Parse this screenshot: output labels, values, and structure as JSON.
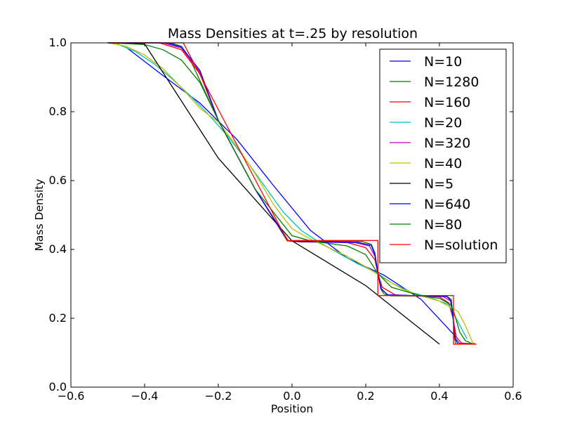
{
  "chart_data": {
    "type": "line",
    "title": "Mass Densities at t=.25 by resolution",
    "xlabel": "Position",
    "ylabel": "Mass Density",
    "xlim": [
      -0.6,
      0.6
    ],
    "ylim": [
      0.0,
      1.0
    ],
    "xticks": [
      "−0.6",
      "−0.4",
      "−0.2",
      "0.0",
      "0.2",
      "0.4",
      "0.6"
    ],
    "yticks": [
      "0.0",
      "0.2",
      "0.4",
      "0.6",
      "0.8",
      "1.0"
    ],
    "grid": false,
    "legend_position": "top-right",
    "series": [
      {
        "name": "N=10",
        "color": "#0000ff",
        "x": [
          -0.45,
          -0.35,
          -0.25,
          -0.15,
          -0.05,
          0.05,
          0.15,
          0.25,
          0.35,
          0.45
        ],
        "y": [
          0.987,
          0.905,
          0.825,
          0.72,
          0.585,
          0.455,
          0.375,
          0.325,
          0.255,
          0.14
        ]
      },
      {
        "name": "N=1280",
        "color": "#008000",
        "x": [
          -0.5,
          -0.33,
          -0.3,
          -0.28,
          -0.2,
          -0.1,
          -0.013,
          0.19,
          0.215,
          0.225,
          0.233,
          0.241,
          0.25,
          0.27,
          0.42,
          0.432,
          0.437,
          0.441,
          0.445,
          0.5
        ],
        "y": [
          1.0,
          1.0,
          0.99,
          0.96,
          0.775,
          0.575,
          0.425,
          0.423,
          0.415,
          0.39,
          0.33,
          0.285,
          0.27,
          0.265,
          0.264,
          0.255,
          0.2,
          0.14,
          0.125,
          0.125
        ]
      },
      {
        "name": "N=160",
        "color": "#ff0000",
        "x": [
          -0.5,
          -0.36,
          -0.3,
          -0.25,
          -0.2,
          -0.1,
          -0.01,
          0.02,
          0.15,
          0.2,
          0.225,
          0.233,
          0.245,
          0.28,
          0.4,
          0.425,
          0.437,
          0.446,
          0.46,
          0.5
        ],
        "y": [
          1.0,
          1.0,
          0.98,
          0.91,
          0.775,
          0.575,
          0.425,
          0.422,
          0.42,
          0.405,
          0.37,
          0.33,
          0.29,
          0.268,
          0.262,
          0.245,
          0.2,
          0.145,
          0.128,
          0.125
        ]
      },
      {
        "name": "N=20",
        "color": "#00bfbf",
        "x": [
          -0.475,
          -0.425,
          -0.375,
          -0.325,
          -0.275,
          -0.225,
          -0.175,
          -0.125,
          -0.075,
          -0.025,
          0.025,
          0.075,
          0.125,
          0.175,
          0.225,
          0.275,
          0.325,
          0.375,
          0.425,
          0.475
        ],
        "y": [
          0.997,
          0.975,
          0.94,
          0.895,
          0.845,
          0.79,
          0.73,
          0.66,
          0.585,
          0.51,
          0.455,
          0.42,
          0.39,
          0.36,
          0.335,
          0.3,
          0.275,
          0.26,
          0.24,
          0.14
        ]
      },
      {
        "name": "N=320",
        "color": "#bf00bf",
        "x": [
          -0.5,
          -0.35,
          -0.3,
          -0.25,
          -0.2,
          -0.1,
          -0.012,
          0.02,
          0.17,
          0.21,
          0.225,
          0.233,
          0.243,
          0.26,
          0.41,
          0.43,
          0.437,
          0.443,
          0.455,
          0.5
        ],
        "y": [
          1.0,
          1.0,
          0.985,
          0.915,
          0.775,
          0.575,
          0.425,
          0.423,
          0.42,
          0.41,
          0.38,
          0.33,
          0.285,
          0.268,
          0.263,
          0.25,
          0.2,
          0.142,
          0.127,
          0.125
        ]
      },
      {
        "name": "N=40",
        "color": "#bfbf00",
        "x": [
          -0.5,
          -0.45,
          -0.4,
          -0.35,
          -0.3,
          -0.25,
          -0.2,
          -0.15,
          -0.1,
          -0.05,
          0.0,
          0.05,
          0.1,
          0.15,
          0.2,
          0.25,
          0.3,
          0.35,
          0.4,
          0.45,
          0.47,
          0.49,
          0.5
        ],
        "y": [
          1.0,
          0.99,
          0.965,
          0.925,
          0.87,
          0.81,
          0.77,
          0.7,
          0.62,
          0.53,
          0.46,
          0.43,
          0.405,
          0.38,
          0.35,
          0.315,
          0.285,
          0.265,
          0.25,
          0.22,
          0.18,
          0.13,
          0.125
        ]
      },
      {
        "name": "N=5",
        "color": "#000000",
        "x": [
          -0.5,
          -0.4,
          -0.2,
          0.0,
          0.2,
          0.4
        ],
        "y": [
          1.0,
          0.997,
          0.665,
          0.425,
          0.295,
          0.125
        ]
      },
      {
        "name": "N=640",
        "color": "#0000ff",
        "x": [
          -0.5,
          -0.34,
          -0.3,
          -0.25,
          -0.2,
          -0.1,
          -0.012,
          0.02,
          0.18,
          0.215,
          0.225,
          0.233,
          0.242,
          0.26,
          0.42,
          0.432,
          0.437,
          0.442,
          0.45,
          0.5
        ],
        "y": [
          1.0,
          1.0,
          0.988,
          0.92,
          0.775,
          0.575,
          0.425,
          0.423,
          0.42,
          0.412,
          0.385,
          0.33,
          0.285,
          0.268,
          0.263,
          0.25,
          0.2,
          0.142,
          0.126,
          0.125
        ]
      },
      {
        "name": "N=80",
        "color": "#008000",
        "x": [
          -0.5,
          -0.4,
          -0.35,
          -0.3,
          -0.25,
          -0.2,
          -0.1,
          0.0,
          0.05,
          0.15,
          0.2,
          0.233,
          0.27,
          0.35,
          0.4,
          0.43,
          0.44,
          0.455,
          0.47,
          0.49,
          0.5
        ],
        "y": [
          1.0,
          0.995,
          0.98,
          0.95,
          0.885,
          0.775,
          0.575,
          0.44,
          0.425,
          0.41,
          0.385,
          0.33,
          0.29,
          0.265,
          0.258,
          0.24,
          0.215,
          0.16,
          0.135,
          0.126,
          0.125
        ]
      },
      {
        "name": "N=solution",
        "color": "#ff0000",
        "x": [
          -0.5,
          -0.295,
          -0.013,
          0.233,
          0.233,
          0.438,
          0.438,
          0.5
        ],
        "y": [
          1.0,
          1.0,
          0.426,
          0.426,
          0.266,
          0.266,
          0.125,
          0.125
        ]
      }
    ]
  }
}
